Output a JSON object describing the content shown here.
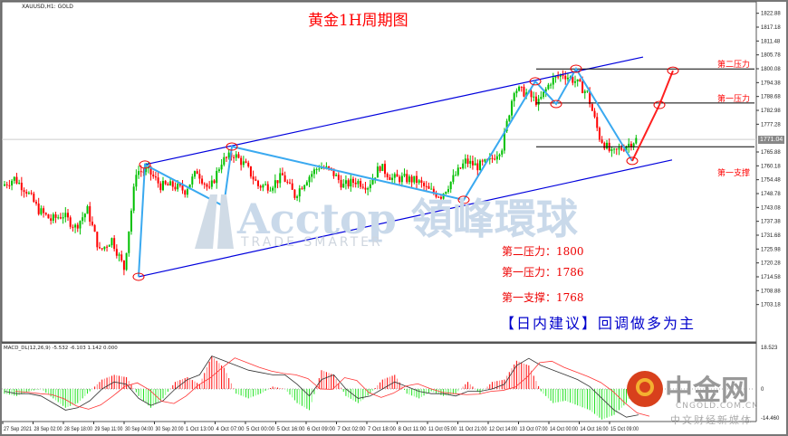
{
  "header": {
    "symbol": "XAUUSD,H1: GOLD",
    "title": "黄金1H周期图"
  },
  "watermark": {
    "brand": "Acctop 領峰環球",
    "tagline": "TRADE SMARTER"
  },
  "levels": {
    "r2_label": "第二压力",
    "r1_label": "第一压力",
    "s1_label": "第一支撑"
  },
  "info": {
    "r2": "第二压力：1800",
    "r1": "第一压力：1786",
    "s1": "第一支撑：1768",
    "advice": "【日内建议】回调做多为主"
  },
  "logo": {
    "name": "中金网",
    "domain": "CNGOLD.COM.CN",
    "slogan": "中文财经新媒体"
  },
  "macd": {
    "label": "MACD_DL(12,26,9) -5.532 -6.103 1.142 0.000",
    "axis_top": "18.523",
    "axis_zero": "0",
    "axis_bottom": "-14.460"
  },
  "colors": {
    "up": "#00c000",
    "down": "#ff0000",
    "zigzag": "#3aa9f0",
    "channel": "#0000dd",
    "projection": "#ff2020"
  },
  "chart_data": {
    "type": "candlestick",
    "title": "黄金1H周期图",
    "yticks": [
      "1822.88",
      "1817.18",
      "1811.48",
      "1805.78",
      "1800.08",
      "1794.38",
      "1788.68",
      "1782.98",
      "1777.28",
      "1765.88",
      "1760.18",
      "1754.48",
      "1748.78",
      "1743.08",
      "1737.38",
      "1731.68",
      "1725.98",
      "1720.28",
      "1714.58",
      "1708.88",
      "1703.18"
    ],
    "current_price": "1771.04",
    "ylim": [
      1703.18,
      1822.88
    ],
    "xticks": [
      "27 Sep 2021",
      "28 Sep 02:00",
      "28 Sep 18:00",
      "29 Sep 11:00",
      "30 Sep 04:00",
      "30 Sep 20:00",
      "1 Oct 13:00",
      "4 Oct 07:00",
      "5 Oct 00:00",
      "5 Oct 16:00",
      "6 Oct 09:00",
      "7 Oct 02:00",
      "7 Oct 18:00",
      "8 Oct 11:00",
      "11 Oct 05:00",
      "11 Oct 21:00",
      "12 Oct 14:00",
      "13 Oct 07:00",
      "14 Oct 00:00",
      "14 Oct 16:00",
      "15 Oct 09:00"
    ],
    "closes": [
      1752,
      1755,
      1750,
      1742,
      1738,
      1740,
      1735,
      1742,
      1725,
      1730,
      1718,
      1758,
      1758,
      1752,
      1752,
      1750,
      1758,
      1750,
      1762,
      1765,
      1760,
      1752,
      1752,
      1756,
      1748,
      1755,
      1760,
      1758,
      1752,
      1754,
      1752,
      1760,
      1755,
      1755,
      1754,
      1750,
      1748,
      1755,
      1762,
      1760,
      1762,
      1768,
      1792,
      1790,
      1786,
      1795,
      1798,
      1795,
      1790,
      1772,
      1765,
      1768,
      1771
    ],
    "zigzag": [
      1714.6,
      1760.7,
      1743.6,
      1768.1,
      1746.2,
      1794.9,
      1785.6,
      1800.1,
      1762.2
    ],
    "projection": [
      1762.2,
      1785.2,
      1799.3
    ],
    "channel_upper": [
      1760.7,
      1804.9
    ],
    "channel_lower": [
      1714.6,
      1762.6
    ],
    "horizontal_levels": [
      1800,
      1786,
      1768
    ],
    "macd_histogram": [
      -2,
      -3,
      -1,
      0,
      -4,
      -8,
      -6,
      -1,
      4,
      6,
      5,
      -3,
      -8,
      -4,
      3,
      5,
      2,
      14,
      9,
      -2,
      -4,
      -2,
      1,
      0,
      -6,
      -9,
      8,
      6,
      -3,
      -6,
      -2,
      4,
      6,
      -2,
      -4,
      -1,
      -3,
      -2,
      3,
      -2,
      3,
      4,
      12,
      10,
      -1,
      -6,
      -5,
      -7,
      -9,
      -13,
      -11,
      -6,
      3
    ],
    "macd_line": [
      -1,
      -2,
      -2,
      -3,
      -6,
      -9,
      -8,
      -5,
      0,
      3,
      2,
      -4,
      -7,
      -5,
      0,
      4,
      6,
      14,
      12,
      10,
      8,
      7,
      6,
      6,
      2,
      -3,
      4,
      6,
      0,
      -4,
      -3,
      0,
      3,
      1,
      -1,
      -2,
      -2,
      -3,
      -1,
      -1,
      0,
      2,
      10,
      13,
      10,
      8,
      6,
      4,
      1,
      -4,
      -9,
      -12,
      -11
    ]
  }
}
